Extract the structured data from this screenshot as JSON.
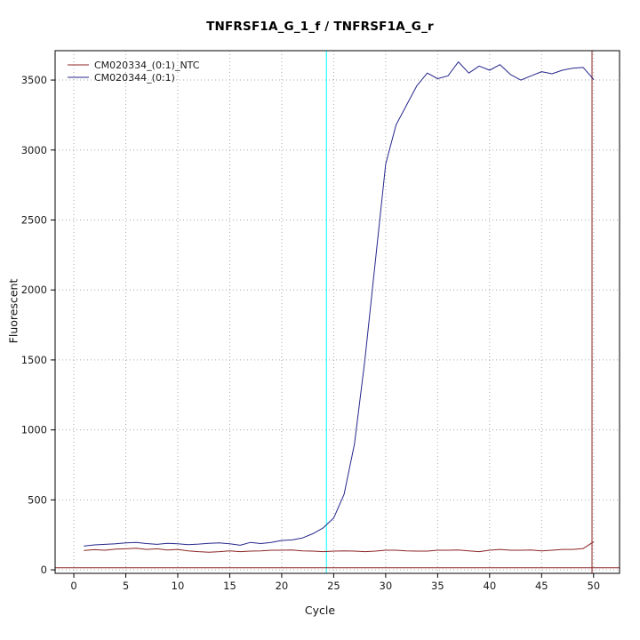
{
  "page": {
    "background": "#ffffff"
  },
  "chart_data": {
    "type": "line",
    "title": "TNFRSF1A_G_1_f / TNFRSF1A_G_r",
    "xlabel": "Cycle",
    "ylabel": "Fluorescent",
    "xlim": [
      -1.8,
      52.5
    ],
    "ylim": [
      -25,
      3710
    ],
    "xticks": [
      0,
      5,
      10,
      15,
      20,
      25,
      30,
      35,
      40,
      45,
      50
    ],
    "yticks": [
      0,
      500,
      1000,
      1500,
      2000,
      2500,
      3000,
      3500
    ],
    "grid": {
      "style": "dotted",
      "color": "#a9a9a9"
    },
    "legend_position": "top-left",
    "x": [
      1,
      2,
      3,
      4,
      5,
      6,
      7,
      8,
      9,
      10,
      11,
      12,
      13,
      14,
      15,
      16,
      17,
      18,
      19,
      20,
      21,
      22,
      23,
      24,
      25,
      26,
      27,
      28,
      29,
      30,
      31,
      32,
      33,
      34,
      35,
      36,
      37,
      38,
      39,
      40,
      41,
      42,
      43,
      44,
      45,
      46,
      47,
      48,
      49,
      50
    ],
    "series": [
      {
        "name": "CM020334_(0:1)_NTC",
        "color": "#8b2323",
        "values": [
          138,
          144,
          140,
          148,
          150,
          154,
          146,
          150,
          142,
          146,
          136,
          130,
          126,
          130,
          136,
          130,
          134,
          136,
          140,
          140,
          142,
          136,
          134,
          130,
          134,
          136,
          134,
          130,
          134,
          140,
          140,
          136,
          134,
          134,
          140,
          140,
          142,
          136,
          130,
          140,
          146,
          140,
          140,
          142,
          136,
          140,
          146,
          146,
          152,
          200
        ]
      },
      {
        "name": "CM020344_(0:1)",
        "color": "#26268c",
        "values": [
          170,
          178,
          182,
          186,
          192,
          196,
          188,
          182,
          190,
          186,
          180,
          184,
          190,
          192,
          186,
          176,
          196,
          188,
          196,
          210,
          214,
          228,
          258,
          300,
          370,
          540,
          900,
          1500,
          2200,
          2900,
          3180,
          3320,
          3460,
          3550,
          3510,
          3530,
          3630,
          3550,
          3600,
          3570,
          3610,
          3540,
          3500,
          3530,
          3560,
          3545,
          3570,
          3585,
          3590,
          3505
        ]
      }
    ],
    "reference_lines": [
      {
        "orientation": "vertical",
        "x": 24.3,
        "color": "#00ffff",
        "name": "threshold-cycle-line"
      },
      {
        "orientation": "vertical",
        "x": 49.85,
        "color": "#8b2323",
        "name": "end-cycle-line"
      },
      {
        "orientation": "horizontal",
        "y": 15,
        "color": "#8b2323",
        "name": "fluorescence-threshold-line"
      }
    ]
  }
}
